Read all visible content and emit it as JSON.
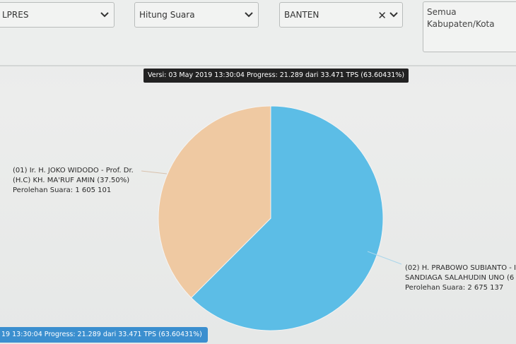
{
  "filters": {
    "election": "LPRES",
    "mode": "Hitung Suara",
    "province": "BANTEN",
    "regency_line1": "Semua",
    "regency_line2": "Kabupaten/Kota"
  },
  "version_tooltip": "Versi: 03 May 2019 13:30:04 Progress: 21.289 dari 33.471 TPS (63.60431%)",
  "bottom_tooltip": "19 13:30:04 Progress: 21.289 dari 33.471 TPS (63.60431%)",
  "labels": {
    "c1_line1": "(01) Ir. H. JOKO WIDODO - Prof. Dr.",
    "c1_line2": "(H.C) KH. MA'RUF AMIN (37.50%)",
    "c1_line3": "Perolehan Suara: 1 605 101",
    "c2_line1": "(02) H. PRABOWO SUBIANTO - I",
    "c2_line2": "SANDIAGA SALAHUDIN UNO (6",
    "c2_line3": "Perolehan Suara: 2 675 137"
  },
  "chart_data": {
    "type": "pie",
    "slices": [
      {
        "name": "(01) Ir. H. JOKO WIDODO - Prof. Dr. (H.C) KH. MA'RUF AMIN",
        "value": 1605101,
        "percent": 37.5,
        "color": "#efc9a2"
      },
      {
        "name": "(02) H. PRABOWO SUBIANTO - SANDIAGA SALAHUDIN UNO",
        "value": 2675137,
        "percent": 62.5,
        "color": "#5cbde6"
      }
    ]
  },
  "colors": {
    "tooltip_bg": "#222222",
    "bottom_tooltip_bg": "#3b8fcf"
  }
}
